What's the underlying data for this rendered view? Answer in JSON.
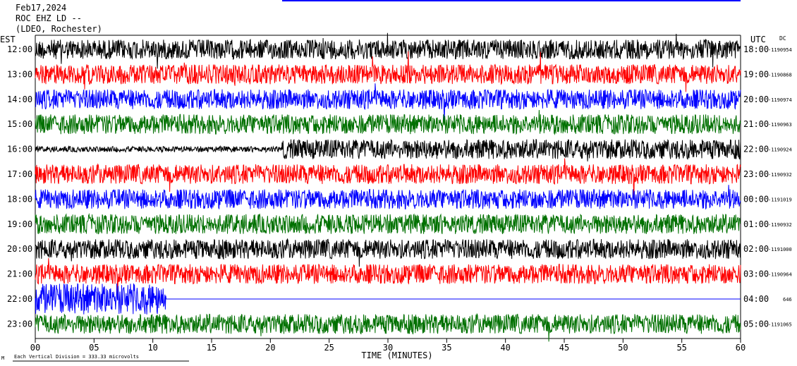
{
  "header": {
    "date": "Feb17,2024",
    "station": "ROC EHZ LD --",
    "institution": "(LDEO, Rochester)"
  },
  "left_axis_label": "EST",
  "right_axis_label": "UTC",
  "dc_label": "DC",
  "footer": {
    "corner_mark": "M",
    "scale_note": "Each Vertical Division =  333.33 microvolts"
  },
  "colors": {
    "trace_cycle": [
      "#000000",
      "#ff0000",
      "#0000ff",
      "#007000"
    ],
    "frame": "#000000",
    "event_marker": "#0000ff"
  },
  "chart_data": {
    "type": "line",
    "title": "ROC EHZ LD --",
    "xlabel": "TIME (MINUTES)",
    "xlim": [
      0,
      60
    ],
    "x_ticks": [
      "00",
      "05",
      "10",
      "15",
      "20",
      "25",
      "30",
      "35",
      "40",
      "45",
      "50",
      "55",
      "60"
    ],
    "rows": [
      {
        "est": "12:00",
        "utc": "18:00",
        "dc": "-1190954",
        "color": "#000000"
      },
      {
        "est": "13:00",
        "utc": "19:00",
        "dc": "-1190868",
        "color": "#ff0000"
      },
      {
        "est": "14:00",
        "utc": "20:00",
        "dc": "-1190974",
        "color": "#0000ff"
      },
      {
        "est": "15:00",
        "utc": "21:00",
        "dc": "-1190963",
        "color": "#007000"
      },
      {
        "est": "16:00",
        "utc": "22:00",
        "dc": "-1190924",
        "color": "#000000"
      },
      {
        "est": "17:00",
        "utc": "23:00",
        "dc": "-1190932",
        "color": "#ff0000"
      },
      {
        "est": "18:00",
        "utc": "00:00",
        "dc": "-1191019",
        "color": "#0000ff"
      },
      {
        "est": "19:00",
        "utc": "01:00",
        "dc": "-1190932",
        "color": "#007000"
      },
      {
        "est": "20:00",
        "utc": "02:00",
        "dc": "-1191000",
        "color": "#000000"
      },
      {
        "est": "21:00",
        "utc": "03:00",
        "dc": "-1190964",
        "color": "#ff0000"
      },
      {
        "est": "22:00",
        "utc": "04:00",
        "dc": "646",
        "color": "#0000ff"
      },
      {
        "est": "23:00",
        "utc": "05:00",
        "dc": "-1191065",
        "color": "#007000"
      }
    ]
  }
}
